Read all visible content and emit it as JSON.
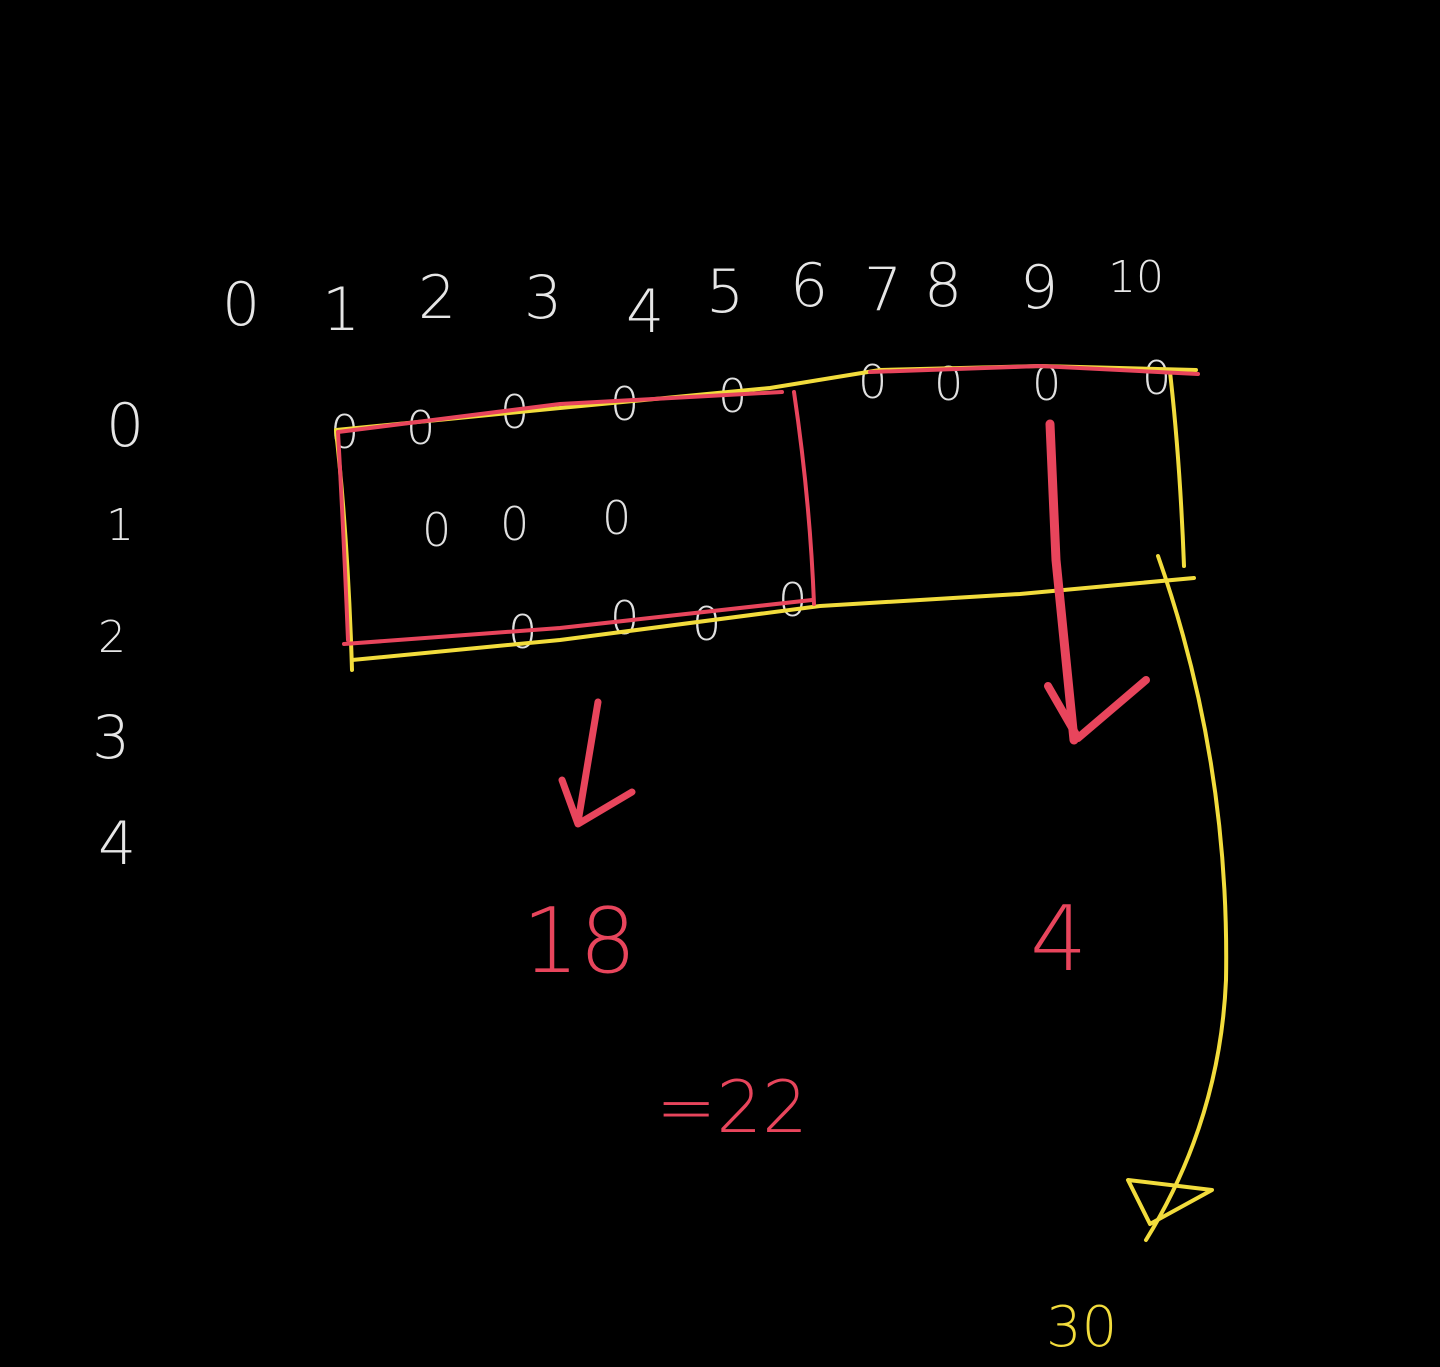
{
  "colors": {
    "background": "#000000",
    "chalk": "#e6e6e6",
    "red": "#e8455c",
    "yellow": "#f2dc3c"
  },
  "column_labels": [
    "0",
    "1",
    "2",
    "3",
    "4",
    "5",
    "6",
    "7",
    "8",
    "9",
    "10"
  ],
  "row_labels": [
    "0",
    "1",
    "2",
    "3",
    "4"
  ],
  "grid_zeros": [
    "0",
    "0",
    "0",
    "0",
    "0",
    "0",
    "0",
    "0",
    "0",
    "0",
    "0",
    "0",
    "0",
    "0",
    "0",
    "0"
  ],
  "results": {
    "left_count": "18",
    "right_count": "4",
    "sum": "=22",
    "total": "30"
  }
}
